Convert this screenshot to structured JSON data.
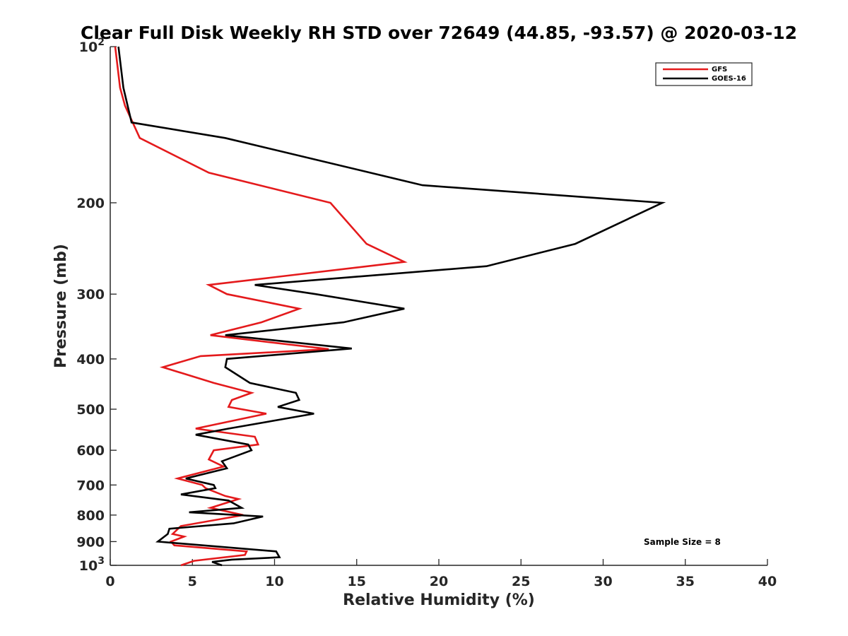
{
  "chart_data": {
    "type": "line",
    "title": "Clear Full Disk Weekly RH STD over 72649 (44.85, -93.57) @ 2020-03-12",
    "xlabel": "Relative Humidity (%)",
    "ylabel": "Pressure (mb)",
    "xlim": [
      0,
      40
    ],
    "ylim": [
      100,
      1000
    ],
    "y_scale": "log",
    "y_reversed": true,
    "grid": false,
    "legend_position": "top-right",
    "x_ticks": [
      0,
      5,
      10,
      15,
      20,
      25,
      30,
      35,
      40
    ],
    "x_tick_labels": [
      "0",
      "5",
      "10",
      "15",
      "20",
      "25",
      "30",
      "35",
      "40"
    ],
    "y_ticks": [
      100,
      200,
      300,
      400,
      500,
      600,
      700,
      800,
      900,
      1000
    ],
    "y_tick_labels": [
      {
        "base": "10",
        "exp": "2"
      },
      {
        "base": "200",
        "exp": ""
      },
      {
        "base": "300",
        "exp": ""
      },
      {
        "base": "400",
        "exp": ""
      },
      {
        "base": "500",
        "exp": ""
      },
      {
        "base": "600",
        "exp": ""
      },
      {
        "base": "700",
        "exp": ""
      },
      {
        "base": "800",
        "exp": ""
      },
      {
        "base": "900",
        "exp": ""
      },
      {
        "base": "10",
        "exp": "3"
      }
    ],
    "annotation": "Sample Size = 8",
    "series": [
      {
        "name": "GFS",
        "color": "#e41a1c",
        "points": [
          [
            0.3,
            100
          ],
          [
            0.6,
            120
          ],
          [
            0.9,
            130
          ],
          [
            1.8,
            150
          ],
          [
            6.0,
            175
          ],
          [
            13.4,
            200
          ],
          [
            15.6,
            240
          ],
          [
            17.9,
            260
          ],
          [
            6.0,
            288
          ],
          [
            7.1,
            300
          ],
          [
            11.5,
            320
          ],
          [
            9.2,
            340
          ],
          [
            6.1,
            360
          ],
          [
            13.3,
            383
          ],
          [
            5.5,
            395
          ],
          [
            3.2,
            415
          ],
          [
            6.3,
            445
          ],
          [
            8.6,
            465
          ],
          [
            7.4,
            480
          ],
          [
            7.2,
            495
          ],
          [
            9.5,
            510
          ],
          [
            5.2,
            545
          ],
          [
            8.8,
            565
          ],
          [
            9.0,
            585
          ],
          [
            6.3,
            600
          ],
          [
            6.0,
            625
          ],
          [
            6.9,
            645
          ],
          [
            4.1,
            680
          ],
          [
            5.6,
            700
          ],
          [
            5.8,
            710
          ],
          [
            7.0,
            735
          ],
          [
            7.8,
            745
          ],
          [
            6.1,
            775
          ],
          [
            8.1,
            800
          ],
          [
            4.3,
            840
          ],
          [
            3.8,
            870
          ],
          [
            4.5,
            880
          ],
          [
            3.7,
            900
          ],
          [
            3.9,
            915
          ],
          [
            8.3,
            940
          ],
          [
            8.2,
            955
          ],
          [
            5.1,
            980
          ],
          [
            4.3,
            1000
          ]
        ]
      },
      {
        "name": "GOES-16",
        "color": "#000000",
        "points": [
          [
            0.5,
            100
          ],
          [
            0.8,
            120
          ],
          [
            1.3,
            140
          ],
          [
            7.0,
            150
          ],
          [
            19.0,
            185
          ],
          [
            33.6,
            200
          ],
          [
            28.3,
            240
          ],
          [
            22.9,
            265
          ],
          [
            8.8,
            288
          ],
          [
            12.5,
            300
          ],
          [
            17.9,
            320
          ],
          [
            14.2,
            340
          ],
          [
            7.0,
            360
          ],
          [
            14.7,
            382
          ],
          [
            7.1,
            400
          ],
          [
            7.0,
            415
          ],
          [
            8.5,
            445
          ],
          [
            11.3,
            465
          ],
          [
            11.5,
            480
          ],
          [
            10.2,
            495
          ],
          [
            12.4,
            510
          ],
          [
            7.2,
            545
          ],
          [
            5.2,
            560
          ],
          [
            8.4,
            585
          ],
          [
            8.6,
            600
          ],
          [
            6.8,
            630
          ],
          [
            7.1,
            650
          ],
          [
            4.6,
            680
          ],
          [
            6.3,
            700
          ],
          [
            6.4,
            710
          ],
          [
            4.3,
            730
          ],
          [
            7.2,
            750
          ],
          [
            8.0,
            775
          ],
          [
            4.8,
            790
          ],
          [
            9.3,
            805
          ],
          [
            7.5,
            830
          ],
          [
            3.6,
            850
          ],
          [
            3.5,
            870
          ],
          [
            2.9,
            900
          ],
          [
            10.1,
            940
          ],
          [
            10.3,
            965
          ],
          [
            7.4,
            975
          ],
          [
            6.2,
            985
          ],
          [
            6.8,
            1000
          ]
        ]
      }
    ]
  }
}
